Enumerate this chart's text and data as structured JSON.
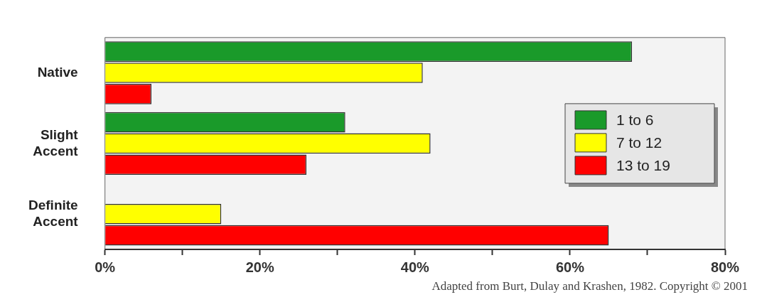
{
  "chart_data": {
    "type": "bar",
    "orientation": "horizontal",
    "categories": [
      "Native",
      "Slight Accent",
      "Definite Accent"
    ],
    "series": [
      {
        "name": "1 to 6",
        "color": "#1a9a2a",
        "values": [
          68,
          31,
          0
        ]
      },
      {
        "name": "7 to 12",
        "color": "#ffff00",
        "values": [
          41,
          42,
          15
        ]
      },
      {
        "name": "13 to 19",
        "color": "#ff0000",
        "values": [
          6,
          26,
          65
        ]
      }
    ],
    "xlim": [
      0,
      80
    ],
    "xticks": [
      {
        "value": 0,
        "label": "0%"
      },
      {
        "value": 10,
        "label": null
      },
      {
        "value": 20,
        "label": "20%"
      },
      {
        "value": 30,
        "label": null
      },
      {
        "value": 40,
        "label": "40%"
      },
      {
        "value": 50,
        "label": null
      },
      {
        "value": 60,
        "label": "60%"
      },
      {
        "value": 70,
        "label": null
      },
      {
        "value": 80,
        "label": "80%"
      }
    ],
    "grid": false,
    "legend": "right",
    "annotations": [
      "Adapted from Burt, Dulay and Krashen, 1982. Copyright © 2001"
    ]
  }
}
